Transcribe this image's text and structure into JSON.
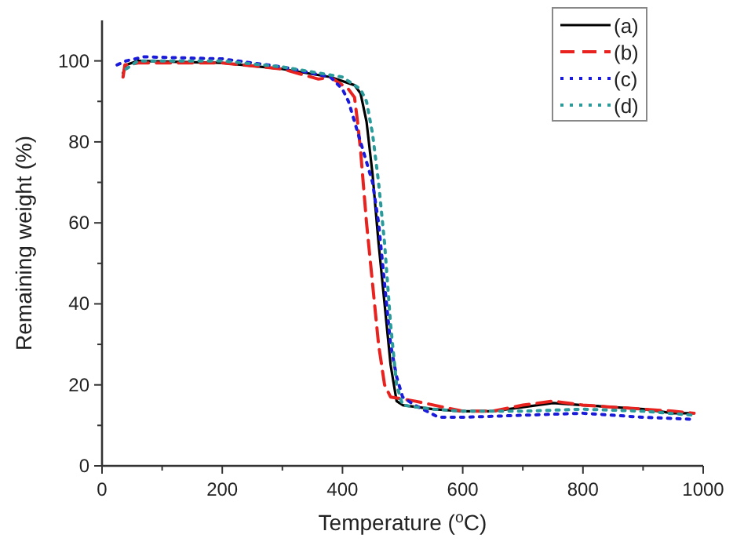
{
  "chart_data": {
    "type": "line",
    "xlabel": "Temperature ($^{o}$C)",
    "ylabel": "Remaining weight (%)",
    "xlim": [
      0,
      1000
    ],
    "ylim": [
      0,
      110
    ],
    "xticks": [
      0,
      200,
      400,
      600,
      800,
      1000
    ],
    "yticks": [
      0,
      20,
      40,
      60,
      80,
      100
    ],
    "grid": false,
    "legend": "top right",
    "series": [
      {
        "name": "(a)",
        "color": "#000000",
        "line_style": "solid",
        "x": [
          35,
          40,
          60,
          200,
          300,
          380,
          420,
          430,
          440,
          450,
          460,
          470,
          480,
          490,
          500,
          550,
          600,
          650,
          700,
          750,
          800,
          850,
          900,
          950,
          985
        ],
        "values": [
          97,
          99,
          100,
          99.5,
          98,
          96,
          94,
          92,
          85,
          72,
          55,
          40,
          25,
          16,
          15,
          14,
          13.5,
          13.5,
          14.5,
          15.5,
          15,
          14.5,
          14,
          13,
          13
        ]
      },
      {
        "name": "(b)",
        "color": "#e8231f",
        "line_style": "dashed",
        "x": [
          35,
          38,
          60,
          200,
          300,
          360,
          380,
          410,
          420,
          425,
          430,
          440,
          450,
          460,
          470,
          480,
          520,
          600,
          650,
          700,
          750,
          800,
          850,
          900,
          950,
          985
        ],
        "values": [
          96,
          99,
          99.5,
          99.5,
          98,
          95.5,
          96,
          93,
          91,
          85,
          78,
          60,
          45,
          30,
          20,
          17,
          16,
          13.5,
          13.5,
          15,
          16,
          15,
          14.5,
          14,
          13.5,
          13
        ]
      },
      {
        "name": "(c)",
        "color": "#1a1adb",
        "line_style": "dotted",
        "x": [
          25,
          40,
          70,
          200,
          300,
          380,
          400,
          410,
          420,
          430,
          440,
          450,
          460,
          470,
          480,
          490,
          500,
          520,
          560,
          600,
          700,
          800,
          900,
          985
        ],
        "values": [
          99,
          100,
          101,
          100.5,
          98.5,
          96,
          93,
          90,
          85,
          80,
          75,
          70,
          60,
          45,
          30,
          22,
          17,
          15,
          12,
          12,
          12.5,
          13,
          12,
          11.5
        ]
      },
      {
        "name": "(d)",
        "color": "#2a9a9a",
        "line_style": "dotted",
        "x": [
          40,
          60,
          200,
          300,
          400,
          430,
          440,
          450,
          460,
          470,
          480,
          490,
          500,
          550,
          600,
          700,
          800,
          900,
          985
        ],
        "values": [
          98,
          100,
          100,
          98.5,
          96,
          93,
          90,
          82,
          70,
          55,
          35,
          20,
          15,
          14,
          13.5,
          13.5,
          14,
          13.5,
          12.5
        ]
      }
    ]
  }
}
